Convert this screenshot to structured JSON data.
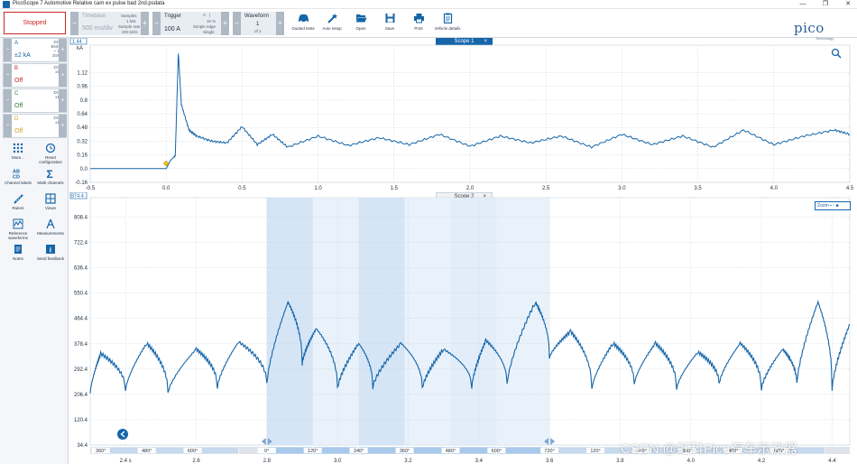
{
  "window": {
    "title": "PicoScope 7 Automotive Relative cam ex pulse bad 2nd.psdata",
    "minimize": "—",
    "maximize": "❐",
    "close": "✕"
  },
  "toolbar": {
    "stop_label": "Stopped",
    "timebase": {
      "label": "Timebase",
      "value": "500 ms/div",
      "samples_label": "Samples",
      "samples_value": "1 MS",
      "rate_label": "Sample rate",
      "rate_value": "200 kS/s",
      "minus": "−",
      "plus": "+"
    },
    "trigger": {
      "label": "Trigger",
      "value": "100 A",
      "channel": "A",
      "percent": "10 %",
      "mode1": "Simple edge",
      "mode2": "Single",
      "minus": "−",
      "plus": "+"
    },
    "waveform": {
      "label": "Waveform",
      "value": "1",
      "of": "of 1",
      "minus": "−",
      "plus": "+"
    },
    "tools": [
      "Guided tests",
      "Auto setup",
      "Open",
      "Save",
      "Print",
      "Vehicle details"
    ],
    "logo": "pico",
    "logo_sub": "Technology"
  },
  "sidebar": {
    "channels": [
      {
        "letter": "A",
        "coupling": "DC",
        "probe1": "BNC + 2",
        "probe2": "20X",
        "value": "±2 kA",
        "color": "#1565a9"
      },
      {
        "letter": "B",
        "coupling": "DC",
        "probe1": "x1",
        "probe2": "",
        "value": "Off",
        "color": "#c62828"
      },
      {
        "letter": "C",
        "coupling": "DC",
        "probe1": "x1",
        "probe2": "",
        "value": "Off",
        "color": "#2e7d32"
      },
      {
        "letter": "D",
        "coupling": "DC",
        "probe1": "x1",
        "probe2": "",
        "value": "Off",
        "color": "#d4a017"
      }
    ],
    "tools": [
      "More...",
      "Reset configuration",
      "Channel labels",
      "Math channels",
      "Rulers",
      "Views",
      "Reference waveforms",
      "Measurements",
      "Notes",
      "Send feedback"
    ],
    "plus": "+",
    "minus": "−"
  },
  "scope1": {
    "tab": "Scope 1",
    "close": "×",
    "unit": "kA",
    "top_value": "1.44",
    "y_ticks": [
      "1.12",
      "0.96",
      "0.8",
      "0.64",
      "0.48",
      "0.32",
      "0.16",
      "0.0",
      "-0.16"
    ],
    "x_ticks": [
      "-0.5",
      "0.0",
      "0.5",
      "1.0",
      "1.5",
      "2.0",
      "2.5",
      "3.0",
      "3.5",
      "4.0",
      "4.5"
    ],
    "x_unit": "s"
  },
  "scope2": {
    "tab": "Scope 2",
    "close": "×",
    "top_value": "874.4",
    "y_ticks": [
      "808.4",
      "722.4",
      "636.4",
      "550.4",
      "464.4",
      "378.4",
      "292.4",
      "206.4",
      "120.4",
      "34.4"
    ],
    "x_ticks": [
      "2.4 s",
      "2.6",
      "2.8",
      "3.0",
      "3.2",
      "3.4",
      "3.6",
      "3.8",
      "4.0",
      "4.2",
      "4.4"
    ],
    "angles": [
      "360°",
      "480°",
      "600°",
      "0°",
      "120°",
      "240°",
      "360°",
      "480°",
      "600°",
      "720°",
      "120°",
      "240°",
      "360°",
      "480°",
      "600°"
    ],
    "zoom_label": "Zoom"
  },
  "watermark": "CSDN @虹科Pico汽车示波器",
  "chart_data": [
    {
      "type": "line",
      "title": "Scope 1",
      "xlabel": "s",
      "ylabel": "kA",
      "xlim": [
        -0.5,
        4.5
      ],
      "ylim": [
        -0.16,
        1.44
      ],
      "series": [
        {
          "name": "A",
          "x": [
            -0.5,
            0.0,
            0.03,
            0.06,
            0.08,
            0.1,
            0.15,
            0.2,
            0.3,
            0.4,
            0.5,
            0.6,
            0.7,
            0.8,
            1.0,
            1.2,
            1.4,
            1.6,
            1.8,
            2.0,
            2.2,
            2.4,
            2.6,
            2.8,
            3.0,
            3.2,
            3.4,
            3.6,
            3.8,
            4.0,
            4.2,
            4.4,
            4.5
          ],
          "y": [
            0.0,
            0.0,
            0.1,
            0.15,
            1.35,
            0.75,
            0.45,
            0.38,
            0.32,
            0.3,
            0.49,
            0.28,
            0.4,
            0.25,
            0.38,
            0.27,
            0.36,
            0.28,
            0.4,
            0.26,
            0.38,
            0.3,
            0.38,
            0.25,
            0.4,
            0.28,
            0.38,
            0.25,
            0.45,
            0.28,
            0.38,
            0.45,
            0.4
          ]
        }
      ]
    },
    {
      "type": "line",
      "title": "Scope 2",
      "xlabel": "s",
      "ylabel": "",
      "xlim": [
        2.3,
        4.45
      ],
      "ylim": [
        34.4,
        874.4
      ],
      "series": [
        {
          "name": "A",
          "x": [
            2.3,
            2.33,
            2.4,
            2.46,
            2.52,
            2.6,
            2.66,
            2.72,
            2.8,
            2.86,
            2.9,
            2.94,
            3.0,
            3.06,
            3.1,
            3.18,
            3.24,
            3.3,
            3.38,
            3.42,
            3.48,
            3.56,
            3.6,
            3.66,
            3.72,
            3.78,
            3.84,
            3.9,
            3.96,
            4.02,
            4.08,
            4.14,
            4.2,
            4.26,
            4.3,
            4.36,
            4.4,
            4.45
          ],
          "y": [
            210,
            345,
            220,
            380,
            210,
            360,
            230,
            385,
            240,
            520,
            310,
            430,
            225,
            380,
            230,
            380,
            225,
            360,
            230,
            390,
            240,
            520,
            330,
            420,
            225,
            380,
            240,
            380,
            225,
            350,
            240,
            380,
            225,
            360,
            240,
            520,
            225,
            445
          ]
        }
      ]
    }
  ]
}
